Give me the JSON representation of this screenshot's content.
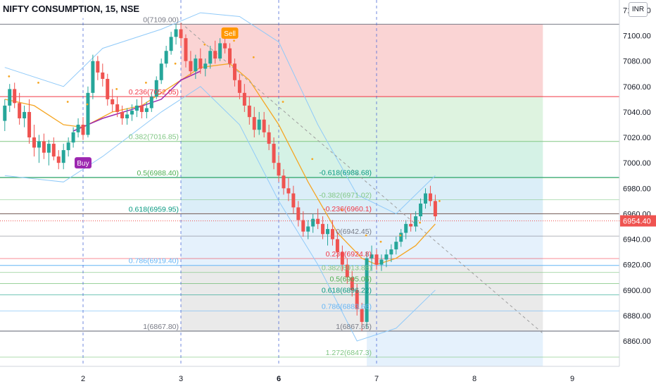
{
  "chart_title": "NIFTY CONSUMPTION, 15, NSE",
  "currency": "INR",
  "colors": {
    "up": "#26a69a",
    "down": "#ef5350",
    "ma": "#f5a623",
    "trend": "#9c27b0",
    "band": "#90caf9",
    "price_label": "#ef5350"
  },
  "chart_data": {
    "type": "candlestick",
    "title": "NIFTY CONSUMPTION, 15, NSE",
    "ylim": [
      6850,
      7128
    ],
    "x_ticks": [
      {
        "label": "2",
        "day": 2,
        "bold": false
      },
      {
        "label": "3",
        "day": 3,
        "bold": false
      },
      {
        "label": "6",
        "day": 4,
        "bold": true
      },
      {
        "label": "7",
        "day": 5,
        "bold": false
      },
      {
        "label": "8",
        "day": 6,
        "bold": false
      },
      {
        "label": "9",
        "day": 7,
        "bold": false
      }
    ],
    "y_ticks": [
      6860,
      6880,
      6900,
      6920,
      6940,
      6960,
      6980,
      7000,
      7020,
      7040,
      7060,
      7080,
      7100,
      7120
    ],
    "current_price": 6954.4,
    "current_price_label": "6954.40",
    "fib_primary": {
      "levels": [
        {
          "ratio": "0",
          "price": 7109.0,
          "label": "0(7109.00)",
          "color": "#787b86"
        },
        {
          "ratio": "0.236",
          "price": 7052.05,
          "label": "0.236(7052.05)",
          "color": "#f23645"
        },
        {
          "ratio": "0.382",
          "price": 7016.85,
          "label": "0.382(7016.85)",
          "color": "#81c784"
        },
        {
          "ratio": "0.5",
          "price": 6988.4,
          "label": "0.5(6988.40)",
          "color": "#4caf50"
        },
        {
          "ratio": "0.618",
          "price": 6959.95,
          "label": "0.618(6959.95)",
          "color": "#089981"
        },
        {
          "ratio": "0.786",
          "price": 6919.4,
          "label": "0.786(6919.40)",
          "color": "#64b5f6"
        },
        {
          "ratio": "1",
          "price": 6867.8,
          "label": "1(6867.80)",
          "color": "#787b86"
        }
      ]
    },
    "fib_secondary": {
      "levels": [
        {
          "price": 6988.68,
          "label": "-0.618(6988.68)",
          "color": "#089981"
        },
        {
          "price": 6971.02,
          "label": "-0.382(6971.02)",
          "color": "#81c784"
        },
        {
          "price": 6960.1,
          "label": "-0.236(6960.1)",
          "color": "#f23645"
        },
        {
          "price": 6942.45,
          "label": "0(6942.45)",
          "color": "#787b86"
        },
        {
          "price": 6924.8,
          "label": "0.236(6924.8)",
          "color": "#f23645"
        },
        {
          "price": 6913.88,
          "label": "0.382(6913.88)",
          "color": "#81c784"
        },
        {
          "price": 6905.05,
          "label": "0.5(6905.05)",
          "color": "#4caf50"
        },
        {
          "price": 6896.22,
          "label": "0.618(6896.22)",
          "color": "#089981"
        },
        {
          "price": 6883.66,
          "label": "0.786(6883.66)",
          "color": "#64b5f6"
        },
        {
          "price": 6867.65,
          "label": "1(6867.65)",
          "color": "#787b86"
        },
        {
          "price": 6847.3,
          "label": "1.272(6847.3)",
          "color": "#81c784"
        }
      ]
    },
    "signals": [
      {
        "label": "Buy",
        "day": 2.0,
        "price": 7000,
        "color": "#9c27b0",
        "direction": "up"
      },
      {
        "label": "Sell",
        "day": 3.5,
        "price": 7102,
        "color": "#ff9800",
        "direction": "down"
      }
    ],
    "candles": [
      [
        1.2,
        7033,
        7050,
        7025,
        7045
      ],
      [
        1.25,
        7045,
        7062,
        7040,
        7058
      ],
      [
        1.3,
        7058,
        7063,
        7043,
        7047
      ],
      [
        1.35,
        7047,
        7055,
        7030,
        7035
      ],
      [
        1.4,
        7035,
        7045,
        7028,
        7040
      ],
      [
        1.45,
        7040,
        7050,
        7015,
        7020
      ],
      [
        1.5,
        7020,
        7030,
        7005,
        7012
      ],
      [
        1.55,
        7012,
        7022,
        7000,
        7017
      ],
      [
        1.6,
        7017,
        7023,
        7003,
        7008
      ],
      [
        1.65,
        7008,
        7018,
        6998,
        7015
      ],
      [
        1.7,
        7015,
        7020,
        7002,
        7005
      ],
      [
        1.75,
        7005,
        7010,
        6995,
        7000
      ],
      [
        1.8,
        7000,
        7015,
        6995,
        7010
      ],
      [
        1.85,
        7010,
        7020,
        7005,
        7016
      ],
      [
        1.9,
        7016,
        7028,
        7012,
        7024
      ],
      [
        1.95,
        7024,
        7035,
        7020,
        7030
      ],
      [
        2.0,
        7030,
        7036,
        7018,
        7022
      ],
      [
        2.05,
        7022,
        7060,
        7020,
        7055
      ],
      [
        2.1,
        7055,
        7085,
        7050,
        7080
      ],
      [
        2.15,
        7080,
        7084,
        7065,
        7071
      ],
      [
        2.2,
        7071,
        7078,
        7060,
        7066
      ],
      [
        2.25,
        7066,
        7070,
        7045,
        7050
      ],
      [
        2.3,
        7050,
        7058,
        7040,
        7046
      ],
      [
        2.35,
        7046,
        7052,
        7036,
        7040
      ],
      [
        2.4,
        7040,
        7045,
        7030,
        7035
      ],
      [
        2.45,
        7035,
        7043,
        7030,
        7038
      ],
      [
        2.5,
        7038,
        7046,
        7033,
        7041
      ],
      [
        2.55,
        7041,
        7050,
        7036,
        7045
      ],
      [
        2.6,
        7045,
        7052,
        7035,
        7040
      ],
      [
        2.65,
        7040,
        7048,
        7035,
        7043
      ],
      [
        2.7,
        7043,
        7056,
        7040,
        7052
      ],
      [
        2.75,
        7052,
        7068,
        7050,
        7065
      ],
      [
        2.8,
        7065,
        7082,
        7062,
        7078
      ],
      [
        2.85,
        7078,
        7092,
        7075,
        7088
      ],
      [
        2.9,
        7088,
        7103,
        7085,
        7099
      ],
      [
        2.95,
        7099,
        7109,
        7093,
        7105
      ],
      [
        3.0,
        7105,
        7110,
        7092,
        7098
      ],
      [
        3.05,
        7098,
        7101,
        7075,
        7080
      ],
      [
        3.1,
        7080,
        7088,
        7068,
        7072
      ],
      [
        3.15,
        7072,
        7085,
        7066,
        7082
      ],
      [
        3.2,
        7082,
        7090,
        7070,
        7074
      ],
      [
        3.25,
        7074,
        7082,
        7068,
        7078
      ],
      [
        3.3,
        7078,
        7092,
        7074,
        7088
      ],
      [
        3.35,
        7088,
        7096,
        7078,
        7082
      ],
      [
        3.4,
        7082,
        7098,
        7080,
        7094
      ],
      [
        3.45,
        7094,
        7103,
        7086,
        7090
      ],
      [
        3.5,
        7090,
        7094,
        7075,
        7078
      ],
      [
        3.55,
        7078,
        7082,
        7060,
        7065
      ],
      [
        3.6,
        7065,
        7070,
        7050,
        7055
      ],
      [
        3.65,
        7055,
        7062,
        7040,
        7045
      ],
      [
        3.7,
        7045,
        7052,
        7030,
        7036
      ],
      [
        3.75,
        7036,
        7044,
        7020,
        7026
      ],
      [
        3.8,
        7026,
        7040,
        7022,
        7034
      ],
      [
        3.85,
        7034,
        7040,
        7020,
        7024
      ],
      [
        3.9,
        7024,
        7030,
        7010,
        7015
      ],
      [
        3.95,
        7015,
        7020,
        6995,
        7000
      ],
      [
        4.0,
        7000,
        7006,
        6985,
        6990
      ],
      [
        4.05,
        6990,
        6995,
        6975,
        6980
      ],
      [
        4.1,
        6980,
        6988,
        6970,
        6976
      ],
      [
        4.15,
        6976,
        6982,
        6960,
        6965
      ],
      [
        4.2,
        6965,
        6970,
        6950,
        6955
      ],
      [
        4.25,
        6955,
        6962,
        6942,
        6946
      ],
      [
        4.3,
        6946,
        6955,
        6940,
        6950
      ],
      [
        4.35,
        6950,
        6960,
        6945,
        6956
      ],
      [
        4.4,
        6956,
        6964,
        6948,
        6952
      ],
      [
        4.45,
        6952,
        6958,
        6940,
        6944
      ],
      [
        4.5,
        6944,
        6952,
        6935,
        6948
      ],
      [
        4.55,
        6948,
        6955,
        6935,
        6940
      ],
      [
        4.6,
        6940,
        6946,
        6925,
        6930
      ],
      [
        4.65,
        6930,
        6935,
        6915,
        6920
      ],
      [
        4.7,
        6920,
        6925,
        6905,
        6910
      ],
      [
        4.75,
        6910,
        6915,
        6895,
        6900
      ],
      [
        4.8,
        6900,
        6905,
        6880,
        6885
      ],
      [
        4.85,
        6885,
        6890,
        6868,
        6875
      ],
      [
        4.9,
        6875,
        6930,
        6870,
        6925
      ],
      [
        4.95,
        6925,
        6935,
        6915,
        6928
      ],
      [
        5.0,
        6928,
        6932,
        6916,
        6920
      ],
      [
        5.05,
        6920,
        6928,
        6915,
        6924
      ],
      [
        5.1,
        6924,
        6932,
        6918,
        6928
      ],
      [
        5.15,
        6928,
        6936,
        6922,
        6932
      ],
      [
        5.2,
        6932,
        6942,
        6928,
        6938
      ],
      [
        5.25,
        6938,
        6948,
        6934,
        6945
      ],
      [
        5.3,
        6945,
        6955,
        6940,
        6952
      ],
      [
        5.35,
        6952,
        6960,
        6946,
        6950
      ],
      [
        5.4,
        6950,
        6962,
        6946,
        6958
      ],
      [
        5.45,
        6958,
        6972,
        6955,
        6968
      ],
      [
        5.5,
        6968,
        6980,
        6964,
        6976
      ],
      [
        5.55,
        6976,
        6982,
        6966,
        6970
      ],
      [
        5.6,
        6970,
        6975,
        6955,
        6958
      ]
    ],
    "ma_line": [
      [
        1.2,
        7050
      ],
      [
        1.5,
        7045
      ],
      [
        1.8,
        7030
      ],
      [
        2.0,
        7028
      ],
      [
        2.3,
        7040
      ],
      [
        2.6,
        7045
      ],
      [
        2.9,
        7060
      ],
      [
        3.2,
        7075
      ],
      [
        3.5,
        7078
      ],
      [
        3.7,
        7065
      ],
      [
        4.0,
        7030
      ],
      [
        4.3,
        6985
      ],
      [
        4.6,
        6945
      ],
      [
        4.85,
        6925
      ],
      [
        5.0,
        6920
      ],
      [
        5.2,
        6925
      ],
      [
        5.4,
        6935
      ],
      [
        5.6,
        6952
      ]
    ],
    "trend_line": [
      [
        1.9,
        7025
      ],
      [
        2.2,
        7035
      ],
      [
        2.5,
        7042
      ],
      [
        2.8,
        7050
      ],
      [
        3.0,
        7065
      ],
      [
        3.2,
        7072
      ]
    ],
    "upper_band": [
      [
        1.2,
        7075
      ],
      [
        1.8,
        7060
      ],
      [
        2.2,
        7090
      ],
      [
        2.8,
        7105
      ],
      [
        3.2,
        7118
      ],
      [
        3.6,
        7115
      ],
      [
        4.0,
        7095
      ],
      [
        4.4,
        7030
      ],
      [
        4.8,
        6975
      ],
      [
        5.2,
        6960
      ],
      [
        5.6,
        6990
      ]
    ],
    "lower_band": [
      [
        1.2,
        6990
      ],
      [
        1.8,
        6985
      ],
      [
        2.2,
        7005
      ],
      [
        2.8,
        7040
      ],
      [
        3.2,
        7060
      ],
      [
        3.6,
        7030
      ],
      [
        4.0,
        6970
      ],
      [
        4.4,
        6920
      ],
      [
        4.8,
        6860
      ],
      [
        5.2,
        6870
      ],
      [
        5.6,
        6900
      ]
    ],
    "dashed_trend": [
      [
        3.0,
        7110
      ],
      [
        6.7,
        6866
      ]
    ]
  }
}
